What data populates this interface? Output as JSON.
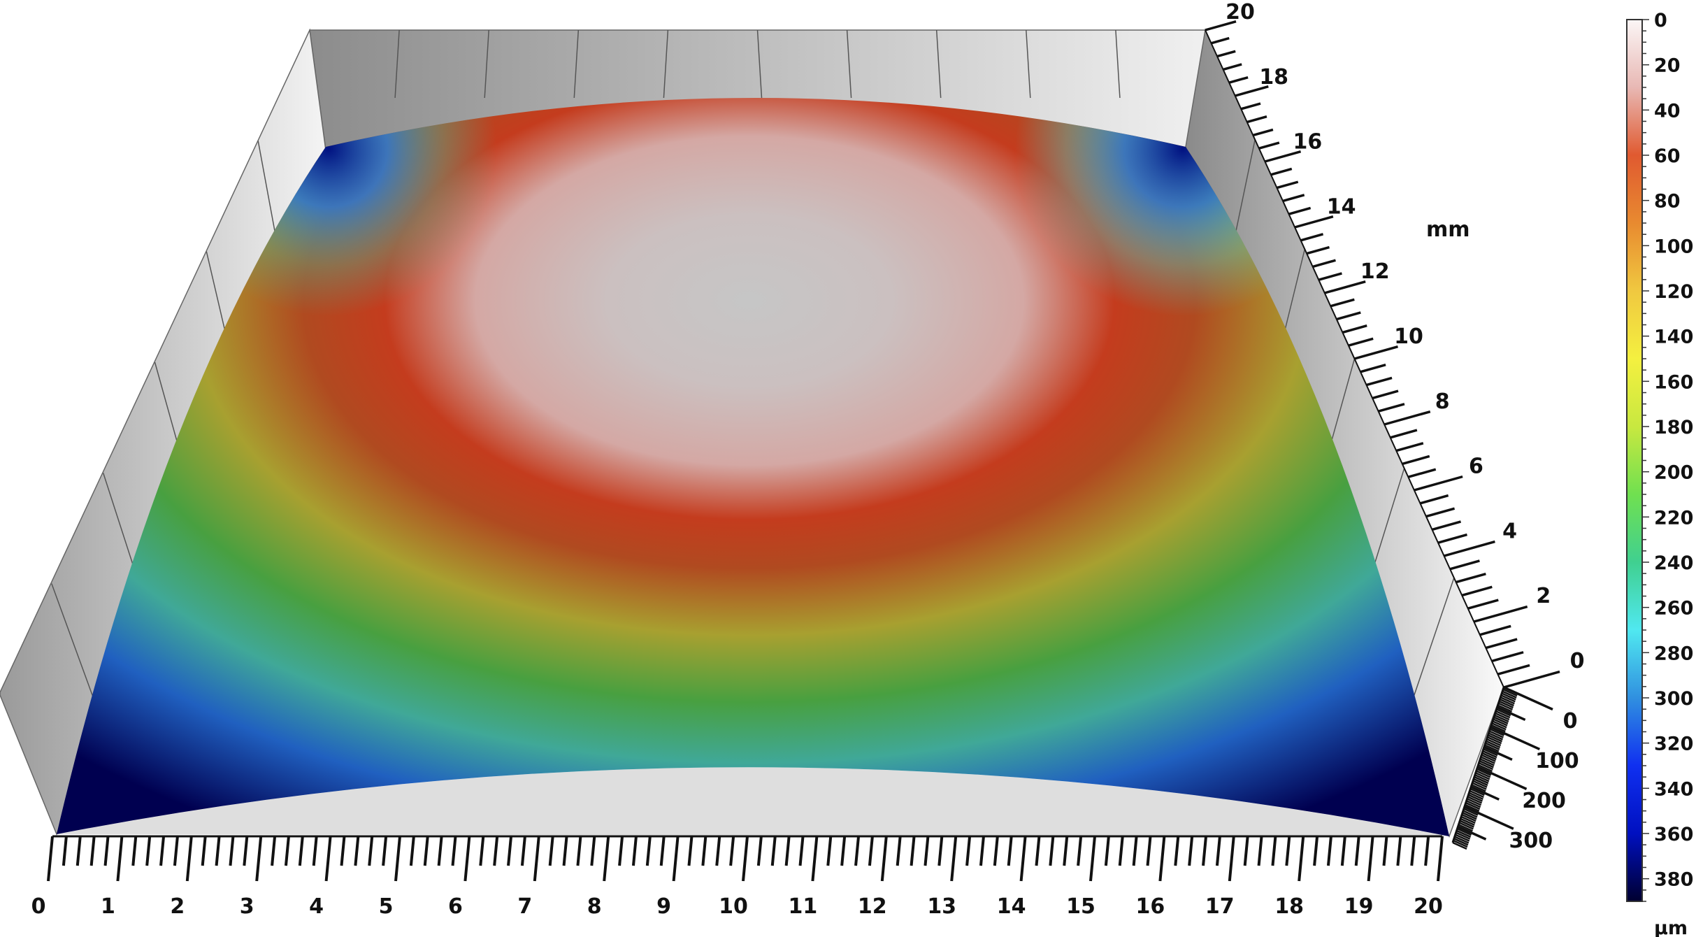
{
  "chart_data": {
    "type": "surface",
    "title": "",
    "x_axis": {
      "ticks": [
        "0",
        "1",
        "2",
        "3",
        "4",
        "5",
        "6",
        "7",
        "8",
        "9",
        "10",
        "11",
        "12",
        "13",
        "14",
        "15",
        "16",
        "17",
        "18",
        "19",
        "20"
      ],
      "range": [
        0,
        20
      ],
      "minor_per_major": 5
    },
    "y_axis": {
      "label": "mm",
      "ticks": [
        "0",
        "2",
        "4",
        "6",
        "8",
        "10",
        "12",
        "14",
        "16",
        "18",
        "20"
      ],
      "range": [
        0,
        20
      ],
      "minor_per_major": 5
    },
    "z_axis": {
      "ticks": [
        "0",
        "100",
        "200",
        "300"
      ],
      "range": [
        0,
        390
      ]
    },
    "colorbar": {
      "unit": "µm",
      "ticks": [
        "0",
        "20",
        "40",
        "60",
        "80",
        "100",
        "120",
        "140",
        "160",
        "180",
        "200",
        "220",
        "240",
        "260",
        "280",
        "300",
        "320",
        "340",
        "360",
        "380"
      ],
      "range": [
        0,
        390
      ],
      "colors": [
        "#fbf6f6",
        "#e8b8b4",
        "#e05a30",
        "#e88a30",
        "#f0c840",
        "#f4f040",
        "#c8e840",
        "#70e050",
        "#40d090",
        "#50e8f0",
        "#3090e0",
        "#1030f0",
        "#0010c0",
        "#000030"
      ]
    },
    "surface_shape": "dome, peak at center (~0 µm) falling to ~380 µm at corners"
  }
}
